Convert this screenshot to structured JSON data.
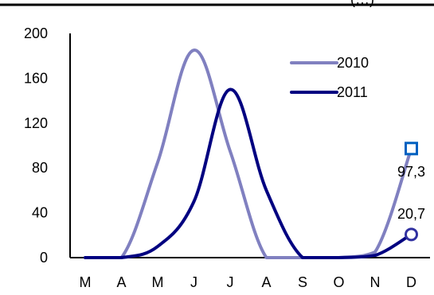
{
  "header": {
    "partial_title": "(…)"
  },
  "chart_data": {
    "type": "line",
    "categories": [
      "M",
      "A",
      "M",
      "J",
      "J",
      "A",
      "S",
      "O",
      "N",
      "D"
    ],
    "ylim": [
      0,
      200
    ],
    "yticks": [
      0,
      40,
      80,
      120,
      160,
      200
    ],
    "grid": false,
    "legend_position": "top-right",
    "series": [
      {
        "name": "2010",
        "color": "#8080c0",
        "values": [
          0,
          0,
          85,
          185,
          95,
          0,
          0,
          0,
          5,
          97.3
        ],
        "end_marker": "square",
        "end_label": "97,3"
      },
      {
        "name": "2011",
        "color": "#000080",
        "values": [
          0,
          0,
          10,
          50,
          150,
          60,
          0,
          0,
          2,
          20.7
        ],
        "end_marker": "circle",
        "end_label": "20,7"
      }
    ]
  }
}
